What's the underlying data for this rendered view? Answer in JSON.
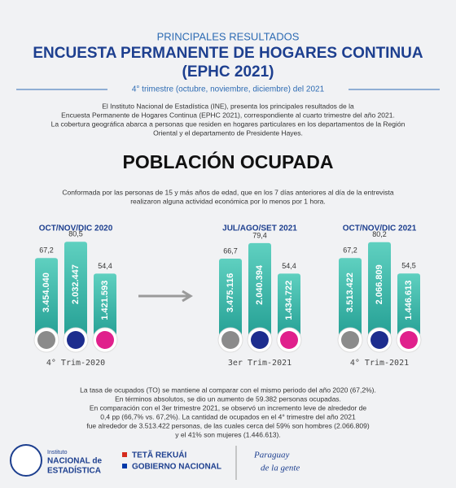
{
  "header": {
    "kicker": "PRINCIPALES RESULTADOS",
    "title": [
      "ENCUESTA PERMANENTE DE HOGARES CONTINUA",
      "(EPHC 2021)"
    ],
    "period": "4° trimestre (octubre, noviembre, diciembre) del 2021"
  },
  "intro": [
    "El Instituto Nacional de Estadística (INE), presenta los principales resultados de la",
    "Encuesta Permanente de Hogares Continua (EPHC 2021), correspondiente al cuarto trimestre del año 2021.",
    "La cobertura geográfica abarca a personas que residen en hogares particulares en los departamentos de la Región",
    "Oriental y el departamento de Presidente Hayes."
  ],
  "section": {
    "title": "POBLACIÓN OCUPADA",
    "description": [
      "Conformada por las personas de 15 y más años de edad, que en los 7 días anteriores al día de la entrevista",
      "realizaron alguna actividad económica por lo menos por 1 hora."
    ]
  },
  "groups": [
    {
      "title": "OCT/NOV/DIC  2020",
      "footer": "4° Trim-2020",
      "bars": [
        {
          "value": 67.2,
          "label": "67,2",
          "count": "3.454.040"
        },
        {
          "value": 80.5,
          "label": "80,5",
          "count": "2.032.447"
        },
        {
          "value": 54.4,
          "label": "54,4",
          "count": "1.421.593"
        }
      ]
    },
    {
      "title": "JUL/AGO/SET 2021",
      "footer": "3er Trim-2021",
      "bars": [
        {
          "value": 66.7,
          "label": "66,7",
          "count": "3.475.116"
        },
        {
          "value": 79.4,
          "label": "79,4",
          "count": "2.040.394"
        },
        {
          "value": 54.4,
          "label": "54,4",
          "count": "1.434.722"
        }
      ]
    },
    {
      "title": "OCT/NOV/DIC 2021",
      "footer": "4° Trim-2021",
      "bars": [
        {
          "value": 67.2,
          "label": "67,2",
          "count": "3.513.422"
        },
        {
          "value": 80.2,
          "label": "80,2",
          "count": "2.066.809"
        },
        {
          "value": 54.5,
          "label": "54,5",
          "count": "1.446.613"
        }
      ]
    }
  ],
  "closing": [
    "La tasa de ocupados (TO) se mantiene al comparar con el mismo periodo del año 2020 (67,2%).",
    "En términos absolutos, se dio un aumento de 59.382 personas ocupadas.",
    "En comparación con el 3er trimestre 2021, se observó un incremento leve de alrededor de",
    "0,4 pp (66,7% vs. 67,2%). La cantidad de ocupados en el 4° trimestre del año 2021",
    "fue alrededor de 3.513.422 personas, de las cuales cerca del 59% son hombres (2.066.809)",
    "y el 41% son mujeres (1.446.613)."
  ],
  "footer": {
    "ine": [
      "Instituto",
      "NACIONAL de",
      "ESTADÍSTICA"
    ],
    "gov": [
      "TETÃ REKUÁI",
      "GOBIERNO NACIONAL"
    ],
    "slogan": [
      "Paraguay",
      "de la gente"
    ]
  }
}
